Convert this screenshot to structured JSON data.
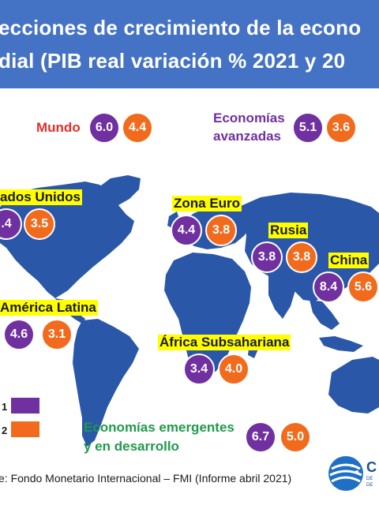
{
  "title": {
    "line1": "ecciones de crecimiento de la econo",
    "line2": "dial (PIB real variación % 2021 y 20"
  },
  "regions": {
    "mundo": {
      "label": "Mundo",
      "v2021": "6.0",
      "v2022": "4.4"
    },
    "avanzadas": {
      "label1": "Economías",
      "label2": "avanzadas",
      "v2021": "5.1",
      "v2022": "3.6"
    },
    "eeuu": {
      "label": "ados Unidos",
      "v2021": ".4",
      "v2022": "3.5"
    },
    "zona_euro": {
      "label": "Zona Euro",
      "v2021": "4.4",
      "v2022": "3.8"
    },
    "rusia": {
      "label": "Rusia",
      "v2021": "3.8",
      "v2022": "3.8"
    },
    "china": {
      "label": "China",
      "v2021": "8.4",
      "v2022": "5.6"
    },
    "america_latina": {
      "label": "América Latina",
      "v2021": "4.6",
      "v2022": "3.1"
    },
    "africa": {
      "label": "África Subsahariana",
      "v2021": "3.4",
      "v2022": "4.0"
    },
    "emergentes": {
      "label1": "Economías emergentes",
      "label2": "y en desarrollo",
      "v2021": "6.7",
      "v2022": "5.0"
    }
  },
  "legend": {
    "y2021": "1",
    "y2022": "2"
  },
  "source": "e: Fondo Monetario Internacional – FMI (Informe abril 2021)",
  "logo": {
    "letter": "C",
    "small1": "DE",
    "small2": "DE"
  },
  "colors": {
    "header": "#4472c4",
    "map": "#2a57a8",
    "series2021": "#7030a0",
    "series2022": "#f26b1d"
  }
}
